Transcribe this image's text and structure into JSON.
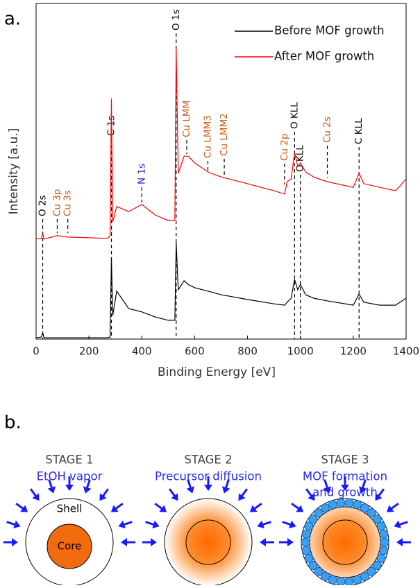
{
  "panel_a_label": "a.",
  "chart_data": {
    "type": "line",
    "x_label": "Binding Energy [eV]",
    "y_label": "Intensity [a.u.]",
    "x": [
      0,
      20,
      25,
      30,
      80,
      120,
      270,
      280,
      285,
      290,
      305,
      350,
      400,
      450,
      500,
      525,
      530,
      538,
      560,
      575,
      600,
      650,
      700,
      800,
      900,
      940,
      950,
      965,
      978,
      990,
      1000,
      1020,
      1050,
      1100,
      1200,
      1222,
      1240,
      1300,
      1360,
      1400
    ],
    "series": [
      {
        "name": "Before MOF growth",
        "color": "#000000",
        "values": [
          0.4,
          0.6,
          1.9,
          0.4,
          0.4,
          0.4,
          0.4,
          0.6,
          24.2,
          7.0,
          14.3,
          9.1,
          8.1,
          6.6,
          5.6,
          5.6,
          28.7,
          14.7,
          17.4,
          16.3,
          15.3,
          14.3,
          13.2,
          11.8,
          10.5,
          10.1,
          11.0,
          12.2,
          17.8,
          14.7,
          16.3,
          13.2,
          12.2,
          11.4,
          10.1,
          13.4,
          11.0,
          10.1,
          10.1,
          12.2
        ]
      },
      {
        "name": "After MOF growth",
        "color": "#ff0000",
        "values": [
          29.8,
          30.0,
          31.6,
          29.8,
          30.8,
          30.4,
          30.0,
          30.8,
          71.7,
          34.9,
          39.5,
          38.0,
          40.1,
          37.0,
          35.3,
          35.3,
          86.6,
          49.4,
          54.5,
          54.5,
          52.5,
          49.8,
          48.3,
          46.3,
          44.2,
          43.2,
          46.9,
          47.7,
          55.6,
          51.4,
          52.5,
          49.8,
          48.3,
          46.9,
          45.2,
          49.4,
          46.3,
          45.2,
          44.2,
          47.7
        ]
      }
    ],
    "xlim": [
      0,
      1400
    ],
    "xticks": [
      0,
      200,
      400,
      600,
      800,
      1000,
      1200,
      1400
    ],
    "ylim": [
      0,
      100
    ],
    "grid": false,
    "legend": "upper right",
    "annotations": [
      {
        "text": "O 2s",
        "x": 25,
        "color": "#000000"
      },
      {
        "text": "Cu 3p",
        "x": 80,
        "color": "#c55a11"
      },
      {
        "text": "Cu 3s",
        "x": 120,
        "color": "#c55a11"
      },
      {
        "text": "C 1s",
        "x": 285,
        "color": "#000000"
      },
      {
        "text": "N 1s",
        "x": 400,
        "color": "#2222dd"
      },
      {
        "text": "O 1s",
        "x": 530,
        "color": "#000000"
      },
      {
        "text": "Cu LMM",
        "x": 570,
        "color": "#c55a11"
      },
      {
        "text": "Cu LMM3",
        "x": 650,
        "color": "#c55a11"
      },
      {
        "text": "Cu LMM2",
        "x": 712,
        "color": "#c55a11"
      },
      {
        "text": "Cu 2p",
        "x": 940,
        "color": "#c55a11"
      },
      {
        "text": "O KLL",
        "x": 978,
        "color": "#000000"
      },
      {
        "text": "O KLL",
        "x": 1000,
        "color": "#000000"
      },
      {
        "text": "Cu 2s",
        "x": 1102,
        "color": "#c55a11"
      },
      {
        "text": "C KLL",
        "x": 1222,
        "color": "#000000"
      }
    ]
  },
  "panel_b": {
    "label": "b.",
    "shell_label": "Shell",
    "core_label": "Core",
    "stages": [
      {
        "title": "STAGE 1",
        "caption": [
          "EtOH vapor"
        ]
      },
      {
        "title": "STAGE 2",
        "caption": [
          "Precursor diffusion"
        ]
      },
      {
        "title": "STAGE 3",
        "caption": [
          "MOF formation",
          "and growth"
        ]
      }
    ]
  }
}
